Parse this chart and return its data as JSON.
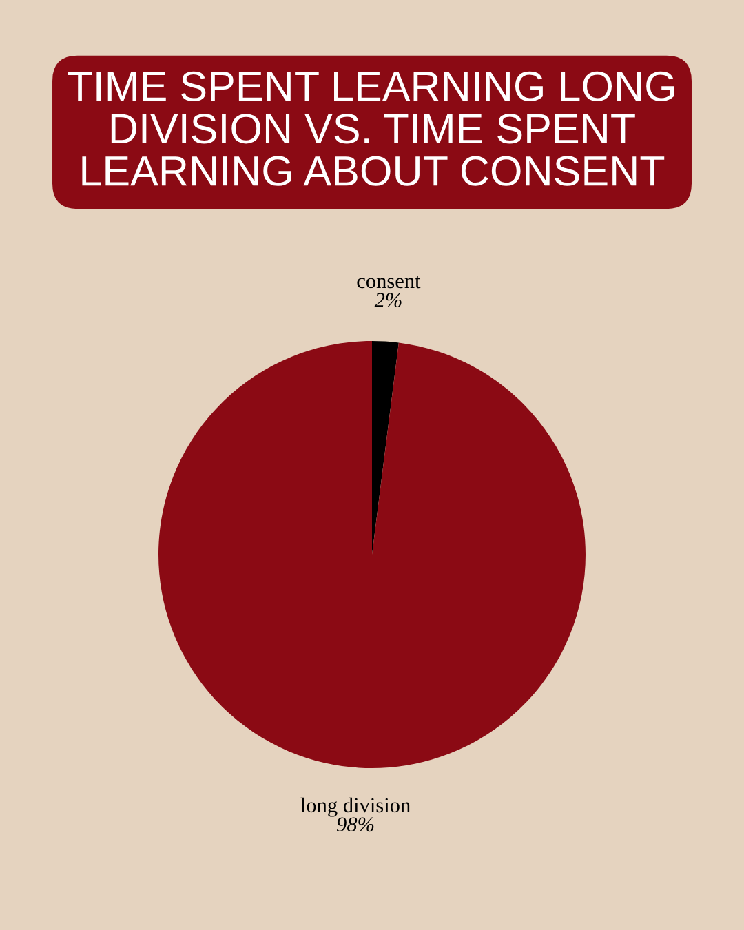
{
  "chart_data": {
    "type": "pie",
    "title": "TIME SPENT LEARNING LONG\nDIVISION VS. TIME SPENT\nLEARNING ABOUT CONSENT",
    "categories": [
      "consent",
      "long division"
    ],
    "values": [
      2,
      98
    ],
    "colors": [
      "#000000",
      "#8b0a14"
    ],
    "value_labels": [
      "2%",
      "98%"
    ]
  }
}
